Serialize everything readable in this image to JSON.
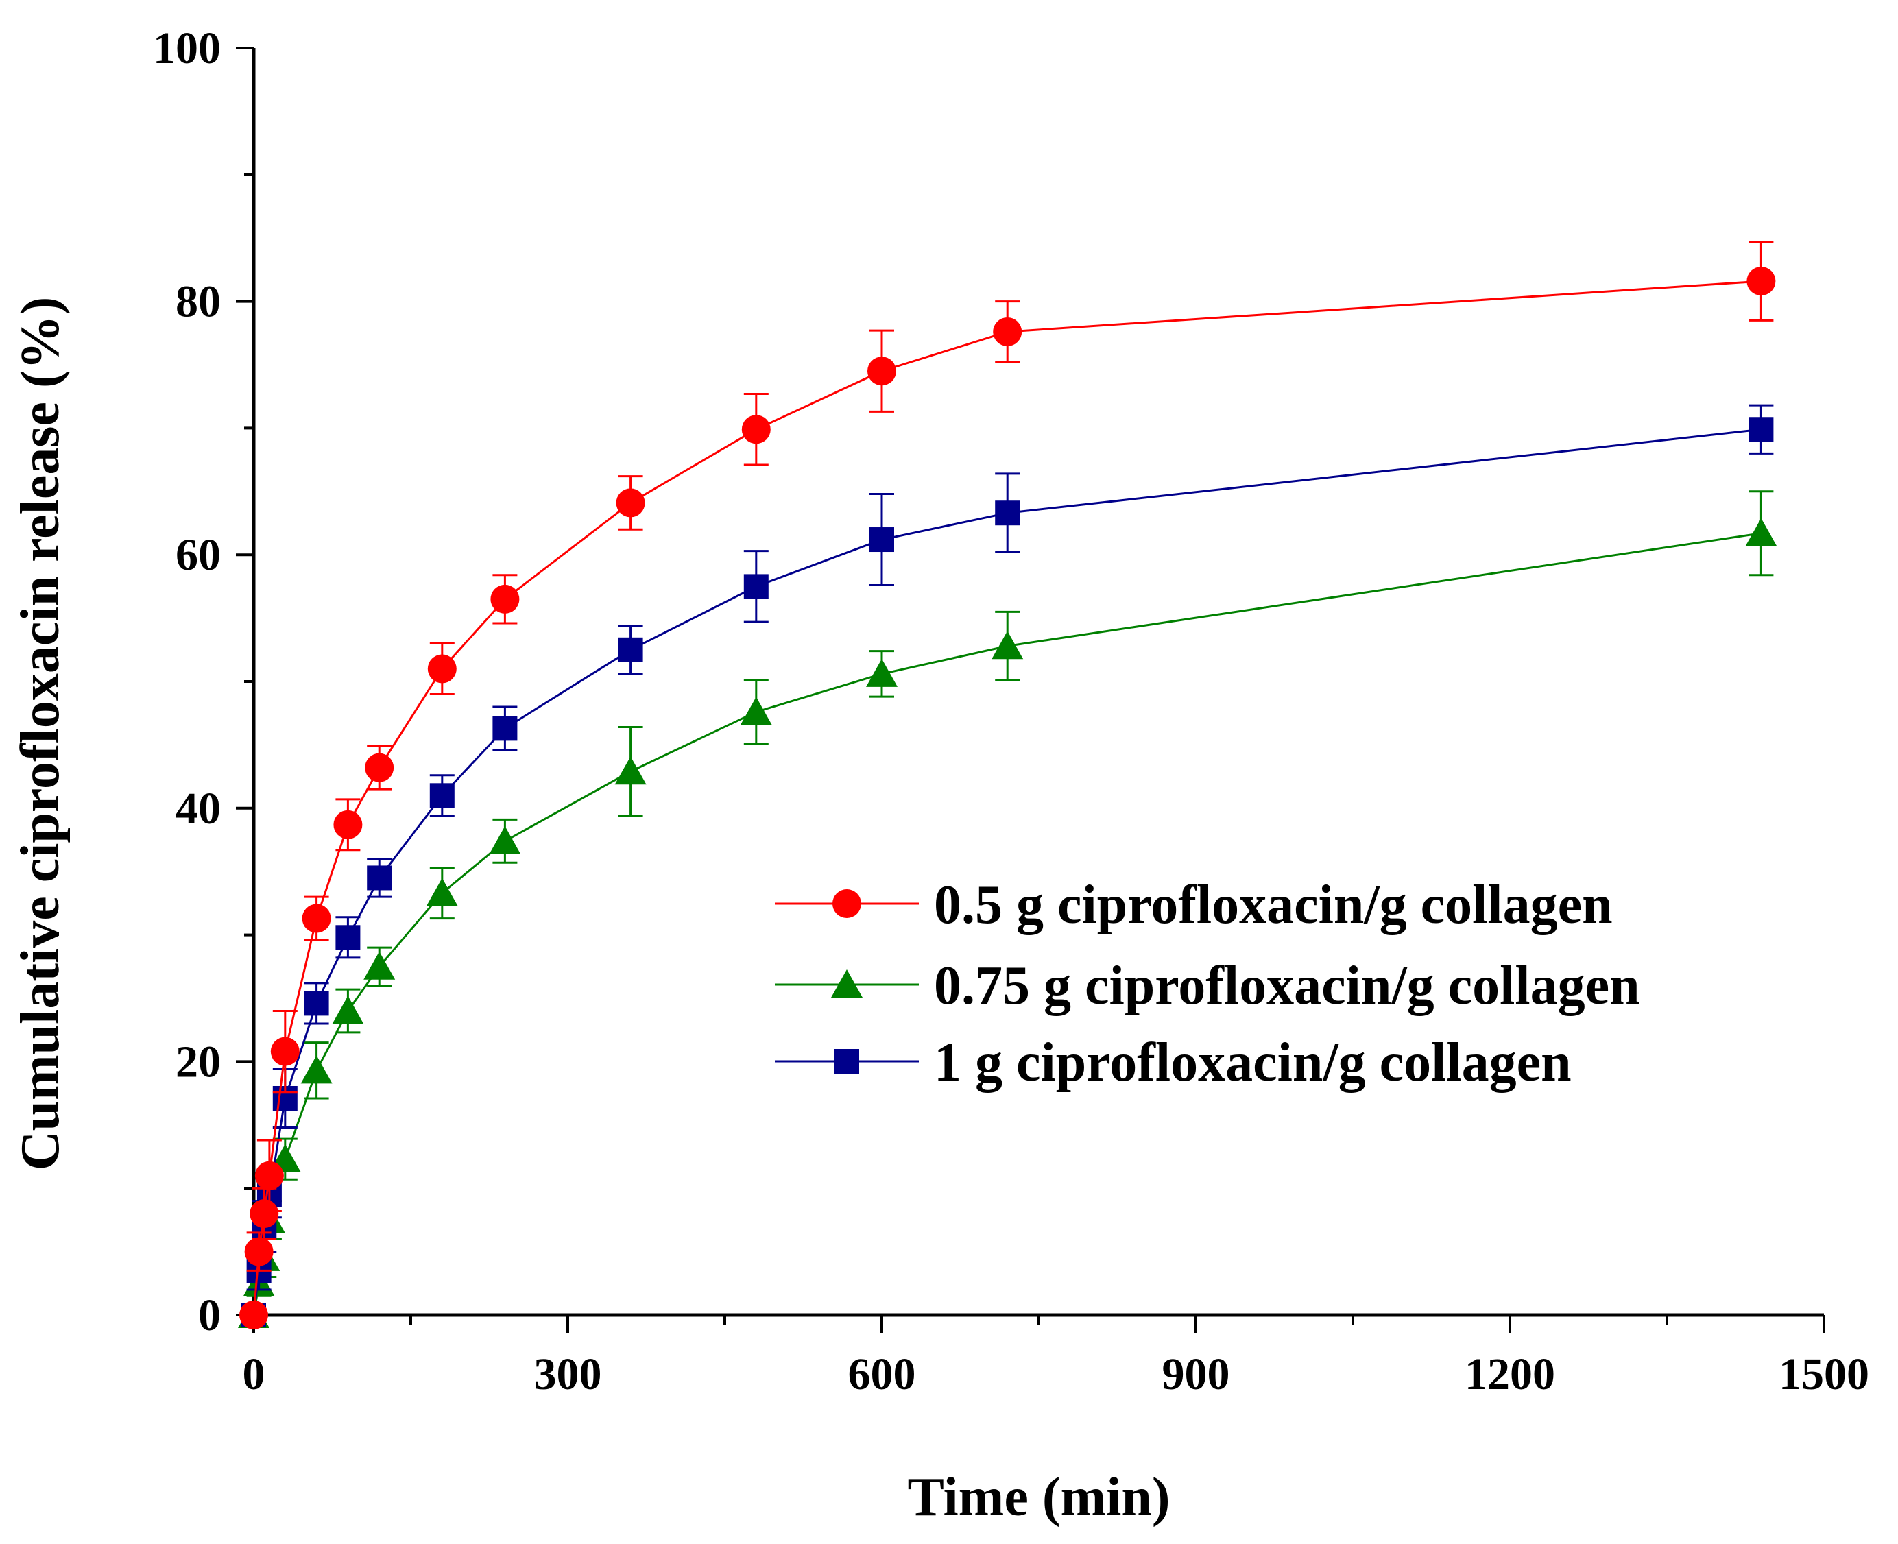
{
  "chart_data": {
    "type": "line",
    "title": "",
    "xlabel": "Time (min)",
    "ylabel": "Cumulative ciprofloxacin release (%)",
    "xlim": [
      0,
      1500
    ],
    "ylim": [
      0,
      100
    ],
    "x_ticks": [
      0,
      300,
      600,
      900,
      1200,
      1500
    ],
    "y_ticks": [
      0,
      20,
      40,
      60,
      80,
      100
    ],
    "x_minor_step": 150,
    "y_minor_step": 10,
    "grid": false,
    "legend_position": "center-right",
    "x": [
      0,
      5,
      10,
      15,
      30,
      60,
      90,
      120,
      180,
      240,
      360,
      480,
      600,
      720,
      1440
    ],
    "series": [
      {
        "name": "0.5 g ciprofloxacin/g collagen",
        "marker": "circle",
        "color": "#ff0000",
        "values": [
          0,
          5,
          8,
          11,
          20.8,
          31.3,
          38.7,
          43.2,
          51.0,
          56.5,
          64.1,
          69.9,
          74.5,
          77.6,
          81.6
        ],
        "errors": [
          0,
          1.5,
          2,
          2.8,
          3.2,
          1.7,
          2.0,
          1.7,
          2.0,
          1.9,
          2.1,
          2.8,
          3.2,
          2.4,
          3.1
        ]
      },
      {
        "name": "0.75 g ciprofloxacin/g collagen",
        "marker": "triangle",
        "color": "#008000",
        "values": [
          0,
          2.5,
          4.5,
          7.5,
          12.3,
          19.3,
          24.0,
          27.5,
          33.3,
          37.4,
          42.9,
          47.6,
          50.6,
          52.8,
          61.7
        ],
        "errors": [
          0,
          1,
          1.5,
          1.5,
          1.6,
          2.2,
          1.7,
          1.5,
          2.0,
          1.7,
          3.5,
          2.5,
          1.8,
          2.7,
          3.3
        ]
      },
      {
        "name": "1 g ciprofloxacin/g collagen",
        "marker": "square",
        "color": "#00008b",
        "values": [
          0,
          3.5,
          7,
          9.5,
          17.1,
          24.6,
          29.8,
          34.5,
          41.0,
          46.3,
          52.5,
          57.5,
          61.2,
          63.3,
          69.9
        ],
        "errors": [
          0,
          1.5,
          2,
          1.8,
          2.3,
          1.6,
          1.6,
          1.5,
          1.6,
          1.7,
          1.9,
          2.8,
          3.6,
          3.1,
          1.9
        ]
      }
    ]
  }
}
